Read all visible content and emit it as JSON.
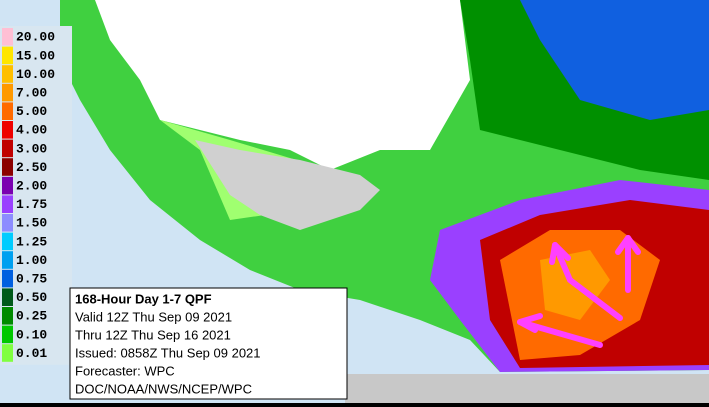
{
  "legend": {
    "items": [
      {
        "label": "20.00",
        "color": "#ffbfd4"
      },
      {
        "label": "15.00",
        "color": "#ffe600"
      },
      {
        "label": "10.00",
        "color": "#ffbf00"
      },
      {
        "label": "7.00",
        "color": "#ff9900"
      },
      {
        "label": "5.00",
        "color": "#ff6a00"
      },
      {
        "label": "4.00",
        "color": "#ee0000"
      },
      {
        "label": "3.00",
        "color": "#c00000"
      },
      {
        "label": "2.50",
        "color": "#8b0000"
      },
      {
        "label": "2.00",
        "color": "#7a00b0"
      },
      {
        "label": "1.75",
        "color": "#9a40ff"
      },
      {
        "label": "1.50",
        "color": "#8c8cff"
      },
      {
        "label": "1.25",
        "color": "#00ccff"
      },
      {
        "label": "1.00",
        "color": "#00a0f0"
      },
      {
        "label": "0.75",
        "color": "#0060e0"
      },
      {
        "label": "0.50",
        "color": "#005a1a"
      },
      {
        "label": "0.25",
        "color": "#008a00"
      },
      {
        "label": "0.10",
        "color": "#00c800"
      },
      {
        "label": "0.01",
        "color": "#80ff40"
      }
    ]
  },
  "info_box": {
    "lines": [
      "168-Hour Day 1-7 QPF",
      "Valid 12Z Thu Sep 09 2021",
      "Thru 12Z Thu Sep 16 2021",
      "Issued: 0858Z Thu Sep 09 2021",
      "Forecaster: WPC",
      "DOC/NOAA/NWS/NCEP/WPC"
    ]
  }
}
